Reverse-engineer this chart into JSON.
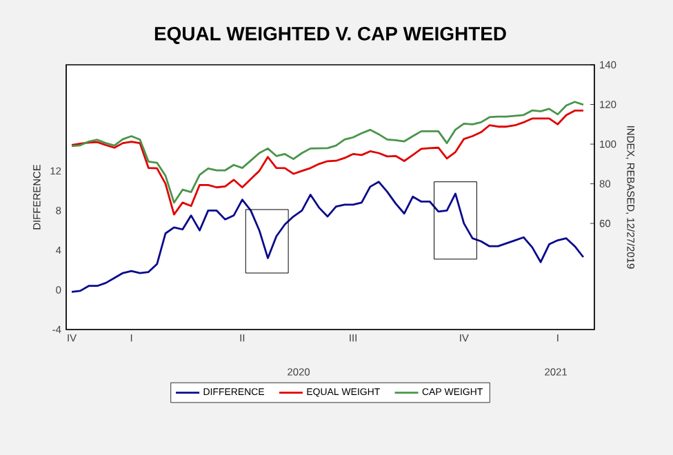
{
  "chart_data": {
    "type": "line",
    "title": "EQUAL WEIGHTED V. CAP WEIGHTED",
    "ylabel": "DIFFERENCE",
    "y2label": "INDEX, REBASED, 12/27/2019",
    "categories": [
      "IV",
      null,
      null,
      null,
      null,
      null,
      null,
      "I",
      null,
      null,
      null,
      null,
      null,
      null,
      null,
      null,
      null,
      null,
      null,
      null,
      "II",
      null,
      null,
      null,
      null,
      null,
      null,
      null,
      null,
      null,
      null,
      null,
      null,
      "III",
      null,
      null,
      null,
      null,
      null,
      null,
      null,
      null,
      null,
      null,
      null,
      null,
      "IV",
      null,
      null,
      null,
      null,
      null,
      null,
      null,
      null,
      null,
      null,
      "I",
      null,
      null,
      null
    ],
    "annotations": [
      "2020",
      "2021"
    ],
    "ylim": [
      -4,
      22.7
    ],
    "yticks": [
      -4,
      0,
      4,
      8,
      12
    ],
    "y2lim": [
      6.5,
      140
    ],
    "y2ticks": [
      60,
      80,
      100,
      120,
      140
    ],
    "legend": "bottom",
    "grid": false,
    "series": [
      {
        "name": "DIFFERENCE",
        "color": "#0a0a8c",
        "values": [
          -0.2,
          -0.1,
          0.4,
          0.4,
          0.7,
          1.2,
          1.7,
          1.9,
          1.7,
          1.8,
          2.6,
          5.7,
          6.3,
          6.1,
          7.5,
          6.0,
          8.0,
          8.0,
          7.1,
          7.5,
          9.1,
          8.0,
          6.0,
          3.2,
          5.4,
          6.6,
          7.4,
          8.0,
          9.6,
          8.3,
          7.4,
          8.4,
          8.6,
          8.6,
          8.8,
          10.4,
          10.9,
          9.9,
          8.7,
          7.7,
          9.4,
          8.9,
          8.9,
          7.9,
          8.0,
          9.7,
          6.7,
          5.2,
          4.9,
          4.4,
          4.4,
          4.7,
          5.0,
          5.3,
          4.3,
          2.8,
          4.6,
          5.0,
          5.2,
          4.4,
          3.3
        ]
      },
      {
        "name": "EQUAL WEIGHT",
        "color": "#e00000",
        "axis": "y2",
        "values": [
          99.5,
          100.2,
          100.8,
          101.0,
          99.5,
          98.2,
          100.5,
          101.2,
          100.5,
          88,
          87.8,
          80,
          64.5,
          70.5,
          68.8,
          79.4,
          79.4,
          78.2,
          78.7,
          82,
          78.2,
          82.4,
          86.5,
          93.5,
          88,
          87.9,
          85,
          86.5,
          87.9,
          90,
          91.4,
          91.6,
          93,
          95,
          94.5,
          96.4,
          95.5,
          93.8,
          94,
          91.5,
          94.5,
          97.6,
          98,
          98.2,
          92.8,
          96,
          102.6,
          104,
          106,
          109.5,
          108.8,
          108.8,
          109.5,
          111,
          112.9,
          112.9,
          112.9,
          110,
          114.6,
          116.9,
          116.9
        ]
      },
      {
        "name": "CAP WEIGHT",
        "color": "#4a944a",
        "axis": "y2",
        "values": [
          99.0,
          99.4,
          101.3,
          102.2,
          100.5,
          99.3,
          102.5,
          104.0,
          102.3,
          91.2,
          90.6,
          84,
          70.5,
          77,
          75.8,
          84.5,
          87.7,
          86.8,
          86.8,
          89.5,
          88,
          91.7,
          95.5,
          97.8,
          94,
          95,
          92.5,
          95.5,
          97.8,
          97.9,
          98,
          99.3,
          102.3,
          103.4,
          105.5,
          107.2,
          105,
          102.3,
          102,
          101.4,
          104,
          106.5,
          106.5,
          106.5,
          100.5,
          107.3,
          110.3,
          110,
          111,
          113.6,
          113.9,
          113.9,
          114.3,
          114.7,
          117,
          116.6,
          117.8,
          115,
          119.5,
          121.3,
          119.9
        ]
      }
    ]
  }
}
